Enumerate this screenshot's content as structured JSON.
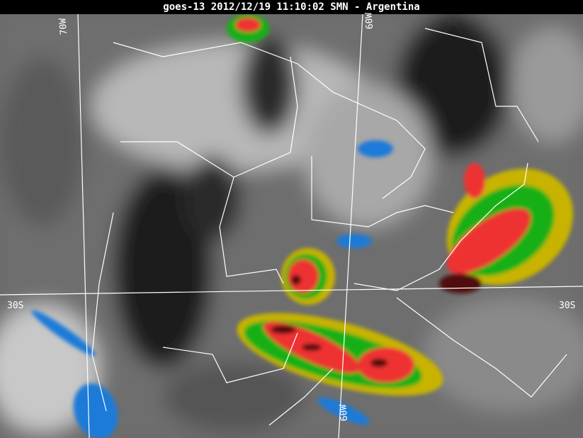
{
  "title": "goes-13 2012/12/19 11:10:02 SMN - Argentina",
  "grid_labels": {
    "lat_left": "30S",
    "lat_right": "30S",
    "lon_top_left": "70W",
    "lon_top": "60W",
    "lon_bottom": "60W"
  },
  "colors": {
    "cloud_cold": "#e8e8e8",
    "clear_dark": "#202020",
    "blue": "#1e7ad8",
    "yellow": "#c8b400",
    "green": "#18b018",
    "red": "#ee3030",
    "dark_red": "#501010",
    "boundaries": "#ffffff"
  }
}
